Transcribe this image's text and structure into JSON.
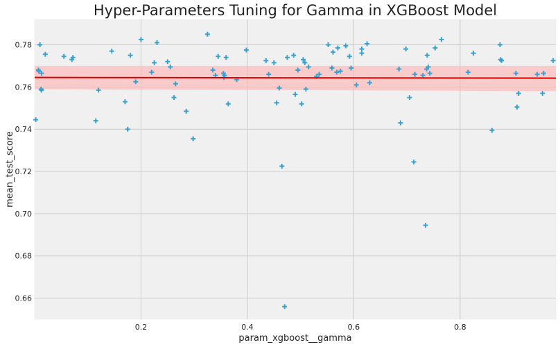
{
  "chart_data": {
    "type": "scatter",
    "title": "Hyper-Parameters Tuning for Gamma in XGBoost Model",
    "xlabel": "param_xgboost__gamma",
    "ylabel": "mean_test_score",
    "xlim": [
      0.0,
      0.98
    ],
    "ylim": [
      0.65,
      0.792
    ],
    "xticks": [
      "0.2",
      "0.4",
      "0.6",
      "0.8"
    ],
    "yticks": [
      "0.66",
      "0.68",
      "0.70",
      "0.72",
      "0.74",
      "0.76",
      "0.78"
    ],
    "grid": true,
    "marker": "plus",
    "colors": {
      "points": "#3aa0d0",
      "regression_line": "#dd0000",
      "confidence_band": "#ffb3b3",
      "background": "#f0f0f0"
    },
    "regression": {
      "x": [
        0.0,
        0.98
      ],
      "y": [
        0.7645,
        0.7642
      ],
      "ci_lower": [
        0.759,
        0.758
      ],
      "ci_upper": [
        0.77,
        0.77
      ]
    },
    "points": {
      "x": [
        0.002,
        0.007,
        0.008,
        0.01,
        0.012,
        0.013,
        0.013,
        0.02,
        0.055,
        0.07,
        0.072,
        0.115,
        0.12,
        0.145,
        0.17,
        0.175,
        0.18,
        0.19,
        0.2,
        0.22,
        0.225,
        0.23,
        0.25,
        0.255,
        0.262,
        0.265,
        0.285,
        0.298,
        0.325,
        0.335,
        0.34,
        0.345,
        0.355,
        0.356,
        0.357,
        0.36,
        0.364,
        0.38,
        0.398,
        0.435,
        0.44,
        0.45,
        0.455,
        0.46,
        0.465,
        0.47,
        0.475,
        0.487,
        0.49,
        0.495,
        0.502,
        0.505,
        0.508,
        0.51,
        0.515,
        0.53,
        0.535,
        0.552,
        0.559,
        0.561,
        0.568,
        0.57,
        0.575,
        0.585,
        0.592,
        0.595,
        0.605,
        0.615,
        0.615,
        0.625,
        0.63,
        0.685,
        0.688,
        0.698,
        0.705,
        0.713,
        0.715,
        0.73,
        0.735,
        0.737,
        0.738,
        0.74,
        0.743,
        0.753,
        0.765,
        0.815,
        0.825,
        0.86,
        0.875,
        0.876,
        0.878,
        0.905,
        0.907,
        0.91,
        0.945,
        0.955,
        0.957,
        0.975
      ],
      "y": [
        0.7445,
        0.768,
        0.7675,
        0.78,
        0.759,
        0.7585,
        0.7665,
        0.7755,
        0.7745,
        0.773,
        0.774,
        0.744,
        0.7585,
        0.777,
        0.753,
        0.74,
        0.775,
        0.7625,
        0.7825,
        0.767,
        0.7715,
        0.781,
        0.772,
        0.7695,
        0.755,
        0.7615,
        0.7485,
        0.7355,
        0.785,
        0.768,
        0.7655,
        0.7745,
        0.7665,
        0.7645,
        0.7655,
        0.774,
        0.752,
        0.7635,
        0.7775,
        0.7725,
        0.766,
        0.7715,
        0.7525,
        0.7595,
        0.7225,
        0.656,
        0.774,
        0.775,
        0.7565,
        0.768,
        0.752,
        0.773,
        0.7715,
        0.759,
        0.7695,
        0.765,
        0.766,
        0.78,
        0.769,
        0.7765,
        0.767,
        0.7785,
        0.7675,
        0.7795,
        0.7745,
        0.769,
        0.761,
        0.778,
        0.776,
        0.7805,
        0.762,
        0.7685,
        0.743,
        0.778,
        0.755,
        0.7245,
        0.766,
        0.7655,
        0.6945,
        0.7685,
        0.775,
        0.7695,
        0.7665,
        0.7785,
        0.7825,
        0.767,
        0.776,
        0.7395,
        0.78,
        0.773,
        0.7725,
        0.7665,
        0.7505,
        0.757,
        0.766,
        0.757,
        0.7665,
        0.7725
      ]
    }
  }
}
